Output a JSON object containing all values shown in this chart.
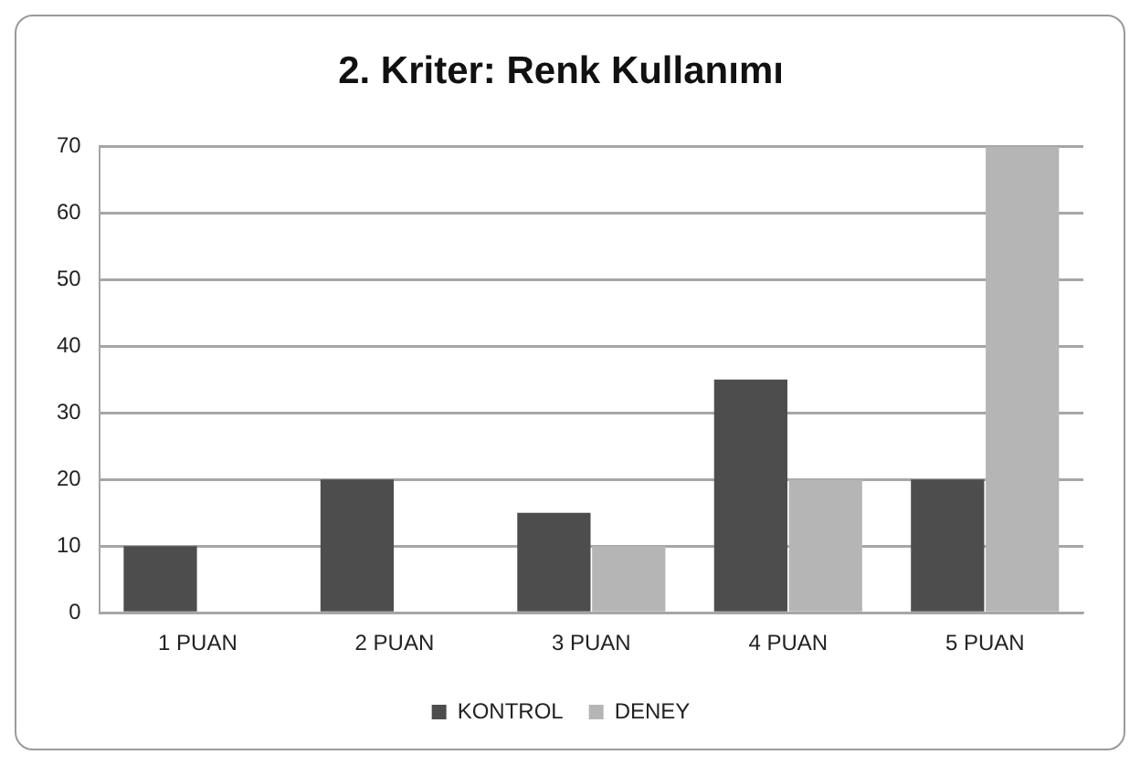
{
  "chart_data": {
    "type": "bar",
    "title": "2. Kriter: Renk Kullanımı",
    "categories": [
      "1 PUAN",
      "2 PUAN",
      "3 PUAN",
      "4 PUAN",
      "5 PUAN"
    ],
    "series": [
      {
        "name": "KONTROL",
        "color": "#4d4d4d",
        "values": [
          10,
          20,
          15,
          35,
          20
        ]
      },
      {
        "name": "DENEY",
        "color": "#b5b5b5",
        "values": [
          0,
          0,
          10,
          20,
          70
        ]
      }
    ],
    "ylim": [
      0,
      70
    ],
    "yticks": [
      0,
      10,
      20,
      30,
      40,
      50,
      60,
      70
    ],
    "grid": "y",
    "legend": "bottom"
  }
}
